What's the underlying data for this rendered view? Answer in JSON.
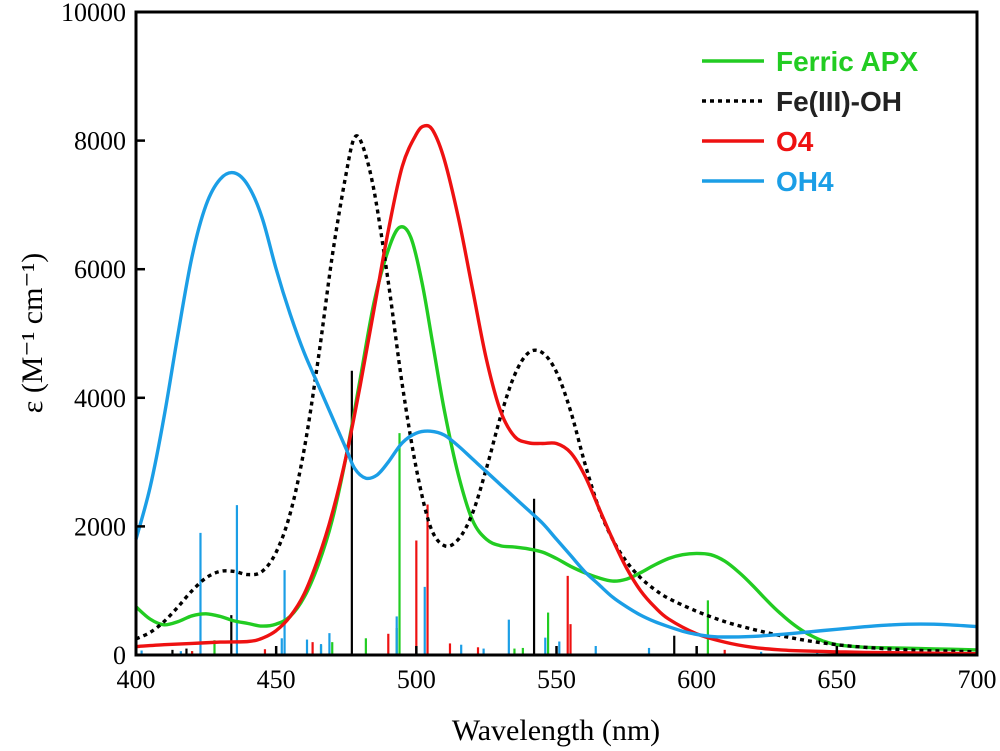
{
  "chart_data": {
    "type": "line",
    "title": "",
    "xlabel": "Wavelength (nm)",
    "ylabel": "ε (M⁻¹ cm⁻¹)",
    "xlim": [
      400,
      700
    ],
    "ylim": [
      0,
      10000
    ],
    "x_ticks": [
      400,
      450,
      500,
      550,
      600,
      650,
      700
    ],
    "y_ticks": [
      0,
      2000,
      4000,
      6000,
      8000,
      10000
    ],
    "grid": false,
    "legend_position": "top-right",
    "series": [
      {
        "name": "Ferric APX",
        "color": "#22cc22",
        "dash": "solid",
        "points": [
          [
            400,
            750
          ],
          [
            405,
            560
          ],
          [
            410,
            470
          ],
          [
            415,
            520
          ],
          [
            420,
            610
          ],
          [
            425,
            640
          ],
          [
            430,
            600
          ],
          [
            435,
            530
          ],
          [
            440,
            490
          ],
          [
            445,
            450
          ],
          [
            450,
            480
          ],
          [
            455,
            600
          ],
          [
            460,
            900
          ],
          [
            465,
            1400
          ],
          [
            470,
            2100
          ],
          [
            475,
            3100
          ],
          [
            480,
            4300
          ],
          [
            485,
            5500
          ],
          [
            490,
            6300
          ],
          [
            494,
            6650
          ],
          [
            498,
            6500
          ],
          [
            502,
            5800
          ],
          [
            506,
            4800
          ],
          [
            510,
            3800
          ],
          [
            515,
            2800
          ],
          [
            520,
            2100
          ],
          [
            525,
            1800
          ],
          [
            530,
            1700
          ],
          [
            535,
            1680
          ],
          [
            540,
            1650
          ],
          [
            545,
            1600
          ],
          [
            550,
            1500
          ],
          [
            555,
            1380
          ],
          [
            560,
            1280
          ],
          [
            565,
            1200
          ],
          [
            570,
            1150
          ],
          [
            575,
            1180
          ],
          [
            580,
            1280
          ],
          [
            585,
            1400
          ],
          [
            590,
            1500
          ],
          [
            595,
            1560
          ],
          [
            600,
            1580
          ],
          [
            605,
            1560
          ],
          [
            610,
            1460
          ],
          [
            615,
            1290
          ],
          [
            620,
            1080
          ],
          [
            625,
            850
          ],
          [
            630,
            640
          ],
          [
            635,
            460
          ],
          [
            640,
            320
          ],
          [
            645,
            220
          ],
          [
            650,
            160
          ],
          [
            660,
            120
          ],
          [
            670,
            110
          ],
          [
            680,
            100
          ],
          [
            690,
            90
          ],
          [
            700,
            80
          ]
        ]
      },
      {
        "name": "Fe(III)-OH",
        "color": "#000000",
        "dash": "dotted",
        "points": [
          [
            400,
            250
          ],
          [
            405,
            350
          ],
          [
            410,
            520
          ],
          [
            415,
            750
          ],
          [
            420,
            1000
          ],
          [
            425,
            1200
          ],
          [
            430,
            1300
          ],
          [
            435,
            1300
          ],
          [
            440,
            1250
          ],
          [
            445,
            1300
          ],
          [
            450,
            1600
          ],
          [
            455,
            2200
          ],
          [
            460,
            3200
          ],
          [
            465,
            4600
          ],
          [
            470,
            6200
          ],
          [
            475,
            7500
          ],
          [
            478,
            8050
          ],
          [
            481,
            7900
          ],
          [
            485,
            7200
          ],
          [
            490,
            5800
          ],
          [
            495,
            4200
          ],
          [
            500,
            2900
          ],
          [
            505,
            2000
          ],
          [
            510,
            1700
          ],
          [
            515,
            1800
          ],
          [
            520,
            2200
          ],
          [
            525,
            2900
          ],
          [
            530,
            3700
          ],
          [
            535,
            4350
          ],
          [
            540,
            4700
          ],
          [
            545,
            4700
          ],
          [
            550,
            4400
          ],
          [
            555,
            3800
          ],
          [
            560,
            3000
          ],
          [
            565,
            2300
          ],
          [
            570,
            1800
          ],
          [
            575,
            1450
          ],
          [
            580,
            1200
          ],
          [
            585,
            1020
          ],
          [
            590,
            880
          ],
          [
            600,
            680
          ],
          [
            610,
            520
          ],
          [
            620,
            400
          ],
          [
            630,
            300
          ],
          [
            640,
            220
          ],
          [
            650,
            160
          ],
          [
            660,
            120
          ],
          [
            670,
            90
          ],
          [
            680,
            70
          ],
          [
            690,
            60
          ],
          [
            700,
            50
          ]
        ]
      },
      {
        "name": "O4",
        "color": "#ee1111",
        "dash": "solid",
        "points": [
          [
            400,
            130
          ],
          [
            410,
            160
          ],
          [
            420,
            180
          ],
          [
            430,
            200
          ],
          [
            440,
            210
          ],
          [
            445,
            260
          ],
          [
            450,
            380
          ],
          [
            455,
            600
          ],
          [
            460,
            950
          ],
          [
            465,
            1500
          ],
          [
            470,
            2200
          ],
          [
            475,
            3100
          ],
          [
            480,
            4200
          ],
          [
            485,
            5400
          ],
          [
            490,
            6600
          ],
          [
            495,
            7600
          ],
          [
            500,
            8100
          ],
          [
            503,
            8230
          ],
          [
            506,
            8150
          ],
          [
            510,
            7700
          ],
          [
            515,
            6800
          ],
          [
            520,
            5700
          ],
          [
            525,
            4600
          ],
          [
            530,
            3800
          ],
          [
            535,
            3400
          ],
          [
            540,
            3300
          ],
          [
            545,
            3290
          ],
          [
            550,
            3290
          ],
          [
            555,
            3150
          ],
          [
            560,
            2800
          ],
          [
            565,
            2300
          ],
          [
            570,
            1800
          ],
          [
            575,
            1350
          ],
          [
            580,
            1000
          ],
          [
            585,
            750
          ],
          [
            590,
            560
          ],
          [
            600,
            330
          ],
          [
            610,
            200
          ],
          [
            620,
            120
          ],
          [
            630,
            80
          ],
          [
            640,
            60
          ],
          [
            650,
            50
          ],
          [
            660,
            40
          ],
          [
            680,
            30
          ],
          [
            700,
            20
          ]
        ]
      },
      {
        "name": "OH4",
        "color": "#1b9ee6",
        "dash": "solid",
        "points": [
          [
            400,
            1800
          ],
          [
            405,
            2600
          ],
          [
            410,
            3700
          ],
          [
            415,
            5000
          ],
          [
            420,
            6200
          ],
          [
            425,
            7000
          ],
          [
            430,
            7400
          ],
          [
            435,
            7500
          ],
          [
            440,
            7300
          ],
          [
            445,
            6800
          ],
          [
            450,
            6000
          ],
          [
            455,
            5300
          ],
          [
            460,
            4700
          ],
          [
            465,
            4200
          ],
          [
            470,
            3700
          ],
          [
            475,
            3200
          ],
          [
            478,
            2900
          ],
          [
            482,
            2750
          ],
          [
            486,
            2800
          ],
          [
            490,
            3000
          ],
          [
            495,
            3300
          ],
          [
            500,
            3450
          ],
          [
            505,
            3480
          ],
          [
            510,
            3420
          ],
          [
            515,
            3250
          ],
          [
            520,
            3050
          ],
          [
            525,
            2850
          ],
          [
            530,
            2650
          ],
          [
            535,
            2450
          ],
          [
            540,
            2250
          ],
          [
            545,
            2050
          ],
          [
            550,
            1800
          ],
          [
            555,
            1550
          ],
          [
            560,
            1300
          ],
          [
            565,
            1100
          ],
          [
            570,
            900
          ],
          [
            575,
            750
          ],
          [
            580,
            620
          ],
          [
            585,
            520
          ],
          [
            590,
            440
          ],
          [
            595,
            370
          ],
          [
            600,
            320
          ],
          [
            605,
            290
          ],
          [
            610,
            280
          ],
          [
            620,
            290
          ],
          [
            630,
            320
          ],
          [
            640,
            360
          ],
          [
            650,
            400
          ],
          [
            660,
            440
          ],
          [
            670,
            470
          ],
          [
            680,
            480
          ],
          [
            690,
            470
          ],
          [
            700,
            440
          ]
        ]
      }
    ],
    "sticks": [
      {
        "series": "Fe(III)-OH",
        "color": "#000000",
        "lines": [
          [
            477,
            4420
          ],
          [
            542,
            2430
          ],
          [
            434,
            620
          ],
          [
            592,
            300
          ],
          [
            418,
            100
          ],
          [
            413,
            80
          ]
        ]
      },
      {
        "series": "Ferric APX",
        "color": "#22cc22",
        "lines": [
          [
            494,
            3450
          ],
          [
            604,
            850
          ],
          [
            547,
            660
          ],
          [
            493,
            420
          ],
          [
            482,
            260
          ],
          [
            428,
            230
          ],
          [
            470,
            200
          ],
          [
            535,
            100
          ],
          [
            538,
            110
          ],
          [
            420,
            60
          ],
          [
            466,
            150
          ]
        ]
      },
      {
        "series": "O4",
        "color": "#ee1111",
        "lines": [
          [
            504,
            2340
          ],
          [
            500,
            1780
          ],
          [
            554,
            1230
          ],
          [
            555,
            480
          ],
          [
            490,
            330
          ],
          [
            463,
            200
          ],
          [
            512,
            180
          ],
          [
            522,
            120
          ],
          [
            446,
            90
          ],
          [
            610,
            80
          ],
          [
            420,
            60
          ]
        ]
      },
      {
        "series": "OH4",
        "color": "#1b9ee6",
        "lines": [
          [
            436,
            2330
          ],
          [
            423,
            1900
          ],
          [
            453,
            1320
          ],
          [
            503,
            1060
          ],
          [
            493,
            600
          ],
          [
            533,
            550
          ],
          [
            452,
            260
          ],
          [
            461,
            240
          ],
          [
            466,
            170
          ],
          [
            469,
            340
          ],
          [
            516,
            160
          ],
          [
            546,
            270
          ],
          [
            551,
            210
          ],
          [
            564,
            140
          ],
          [
            583,
            110
          ],
          [
            402,
            70
          ],
          [
            416,
            60
          ],
          [
            524,
            100
          ],
          [
            623,
            50
          ],
          [
            643,
            40
          ]
        ]
      }
    ]
  }
}
